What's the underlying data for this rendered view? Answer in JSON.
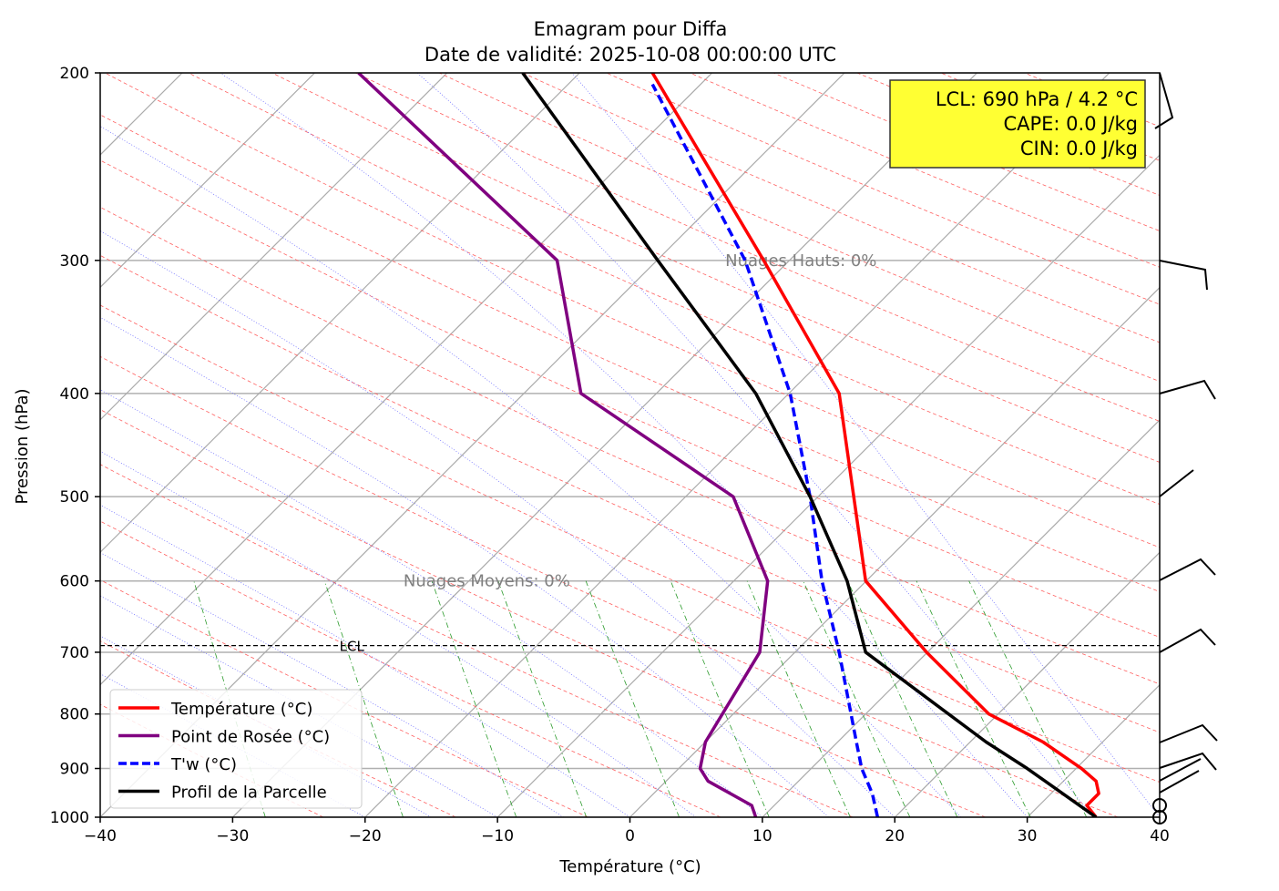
{
  "chart_data": {
    "type": "line",
    "title": "Emagram pour Diffa",
    "subtitle": "Date de validité: 2025-10-08 00:00:00 UTC",
    "xlabel": "Température (°C)",
    "ylabel": "Pression (hPa)",
    "xlim": [
      -40,
      40
    ],
    "ylim": [
      1000,
      200
    ],
    "yscale": "log",
    "xticks": [
      -40,
      -30,
      -20,
      -10,
      0,
      10,
      20,
      30,
      40
    ],
    "xtick_labels": [
      "−40",
      "−30",
      "−20",
      "−10",
      "0",
      "10",
      "20",
      "30",
      "40"
    ],
    "yticks": [
      1000,
      900,
      800,
      700,
      600,
      500,
      400,
      300,
      200
    ],
    "legend_position": "bottom-left",
    "series": [
      {
        "name": "Température (°C)",
        "color": "#ff0000",
        "style": "solid",
        "p": [
          1000,
          975,
          950,
          925,
          900,
          850,
          800,
          700,
          600,
          500,
          400,
          300,
          200
        ],
        "t": [
          35.2,
          34.5,
          35.4,
          35.2,
          34.1,
          31.2,
          27.1,
          22.4,
          17.8,
          16.9,
          15.8,
          10.1,
          1.7
        ]
      },
      {
        "name": "Point de Rosée (°C)",
        "color": "#800080",
        "style": "solid",
        "p": [
          1000,
          975,
          925,
          900,
          850,
          700,
          600,
          500,
          400,
          300,
          200
        ],
        "t": [
          9.5,
          9.2,
          5.9,
          5.3,
          5.7,
          9.8,
          10.4,
          7.8,
          -3.7,
          -5.5,
          -20.5
        ]
      },
      {
        "name": "T'w (°C)",
        "color": "#0000ff",
        "style": "dashed",
        "p": [
          1000,
          950,
          900,
          850,
          700,
          600,
          500,
          400,
          300,
          205
        ],
        "t": [
          18.7,
          18.3,
          17.5,
          17.1,
          15.8,
          14.5,
          13.6,
          12.1,
          8.7,
          1.7
        ]
      },
      {
        "name": "Profil de la Parcelle",
        "color": "#000000",
        "style": "solid",
        "p": [
          1000,
          900,
          850,
          700,
          600,
          500,
          400,
          300,
          200
        ],
        "t": [
          35.2,
          30.0,
          26.9,
          17.8,
          16.4,
          13.6,
          9.5,
          2.1,
          -8.1
        ]
      }
    ],
    "lcl_line": {
      "pressure": 690,
      "label": "LCL"
    },
    "annotations": [
      {
        "text": "Nuages Hauts: 0%",
        "pressure": 300,
        "temp": 7.2
      },
      {
        "text": "Nuages Moyens: 0%",
        "pressure": 600,
        "temp": -17.1
      }
    ],
    "info_box": {
      "lines": [
        "LCL: 690 hPa / 4.2 °C",
        "CAPE: 0.0 J/kg",
        "CIN: 0.0 J/kg"
      ],
      "background": "#ffff33"
    }
  }
}
